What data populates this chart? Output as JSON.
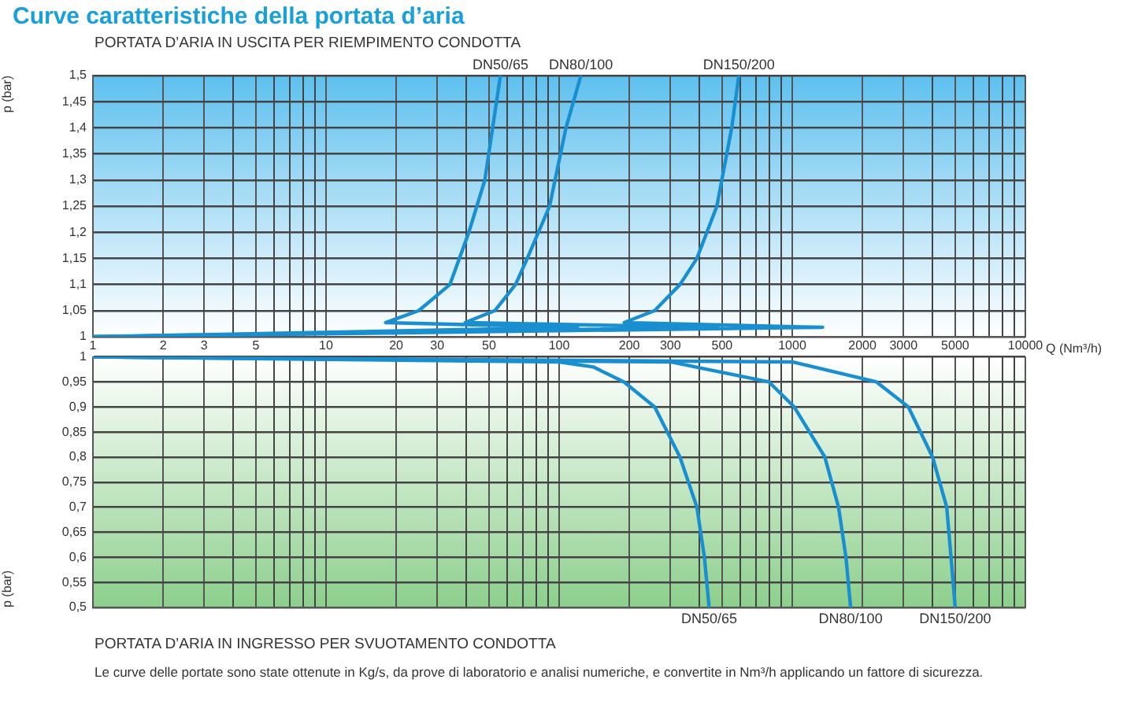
{
  "chart_data": [
    {
      "type": "line",
      "title": "Curve caratteristiche della portata d’aria",
      "subtitle": "PORTATA D’ARIA IN USCITA PER RIEMPIMENTO CONDOTTA",
      "xlabel": "Q (Nm³/h)",
      "ylabel": "p (bar)",
      "log": "x",
      "grid": true,
      "marker": "none",
      "line_style": "solid",
      "legend": false,
      "xlim": [
        1,
        10000
      ],
      "xticks": [
        1,
        2,
        3,
        {
          "value": 4,
          "label": null
        },
        5,
        {
          "value": 6,
          "label": null
        },
        {
          "value": 7,
          "label": null
        },
        {
          "value": 8,
          "label": null
        },
        {
          "value": 9,
          "label": null
        },
        10,
        20,
        30,
        {
          "value": 40,
          "label": null
        },
        50,
        {
          "value": 60,
          "label": null
        },
        {
          "value": 70,
          "label": null
        },
        {
          "value": 80,
          "label": null
        },
        {
          "value": 90,
          "label": null
        },
        100,
        200,
        300,
        {
          "value": 400,
          "label": null
        },
        500,
        {
          "value": 600,
          "label": null
        },
        {
          "value": 700,
          "label": null
        },
        {
          "value": 800,
          "label": null
        },
        {
          "value": 900,
          "label": null
        },
        1000,
        2000,
        3000,
        {
          "value": 4000,
          "label": null
        },
        5000,
        {
          "value": 6000,
          "label": null
        },
        {
          "value": 7000,
          "label": null
        },
        {
          "value": 8000,
          "label": null
        },
        {
          "value": 9000,
          "label": null
        },
        10000
      ],
      "ylim": [
        1,
        1.5
      ],
      "yticks": [
        1,
        {
          "value": 1.05,
          "label": "1,05"
        },
        {
          "value": 1.1,
          "label": "1,1"
        },
        {
          "value": 1.15,
          "label": "1,15"
        },
        {
          "value": 1.2,
          "label": "1,2"
        },
        {
          "value": 1.25,
          "label": "1,25"
        },
        {
          "value": 1.3,
          "label": "1,3"
        },
        {
          "value": 1.35,
          "label": "1,35"
        },
        {
          "value": 1.4,
          "label": "1,4"
        },
        {
          "value": 1.45,
          "label": "1,45"
        },
        {
          "value": 1.5,
          "label": "1,5"
        }
      ],
      "series": [
        {
          "name": "DN50/65",
          "color": "#1a8fd0",
          "x": [
            1,
            120,
            18,
            25,
            34,
            41,
            48,
            56
          ],
          "values": [
            1,
            1.018,
            1.027,
            1.05,
            1.1,
            1.2,
            1.3,
            1.5
          ]
        },
        {
          "name": "DN80/100",
          "color": "#1a8fd0",
          "x": [
            1,
            480,
            39.5,
            53,
            65,
            73,
            91,
            107,
            124
          ],
          "values": [
            1,
            1.018,
            1.027,
            1.05,
            1.1,
            1.15,
            1.25,
            1.4,
            1.5
          ]
        },
        {
          "name": "DN150/200",
          "color": "#1a8fd0",
          "x": [
            1,
            1350,
            190,
            257,
            330,
            390,
            475,
            550,
            590
          ],
          "values": [
            1,
            1.018,
            1.027,
            1.05,
            1.1,
            1.15,
            1.25,
            1.4,
            1.5
          ]
        }
      ]
    },
    {
      "type": "line",
      "title": "PORTATA D’ARIA IN INGRESSO PER SVUOTAMENTO CONDOTTA",
      "ylabel": "p (bar)",
      "log": "x",
      "grid": true,
      "marker": "none",
      "line_style": "solid",
      "legend": false,
      "tick_labels": "y",
      "annotations": [
        "Le curve delle portate sono state ottenute in Kg/s, da prove di laboratorio e analisi numeriche, e convertite in Nm³/h applicando un fattore di sicurezza."
      ],
      "xlim": [
        1,
        10000
      ],
      "xticks": [
        1,
        2,
        3,
        {
          "value": 4,
          "label": null
        },
        5,
        {
          "value": 6,
          "label": null
        },
        {
          "value": 7,
          "label": null
        },
        {
          "value": 8,
          "label": null
        },
        {
          "value": 9,
          "label": null
        },
        10,
        20,
        30,
        {
          "value": 40,
          "label": null
        },
        50,
        {
          "value": 60,
          "label": null
        },
        {
          "value": 70,
          "label": null
        },
        {
          "value": 80,
          "label": null
        },
        {
          "value": 90,
          "label": null
        },
        100,
        200,
        300,
        {
          "value": 400,
          "label": null
        },
        500,
        {
          "value": 600,
          "label": null
        },
        {
          "value": 700,
          "label": null
        },
        {
          "value": 800,
          "label": null
        },
        {
          "value": 900,
          "label": null
        },
        1000,
        2000,
        3000,
        {
          "value": 4000,
          "label": null
        },
        5000,
        {
          "value": 6000,
          "label": null
        },
        {
          "value": 7000,
          "label": null
        },
        {
          "value": 8000,
          "label": null
        },
        {
          "value": 9000,
          "label": null
        },
        10000
      ],
      "ylim": [
        0.5,
        1
      ],
      "yticks": [
        {
          "value": 0.5,
          "label": "0,5"
        },
        {
          "value": 0.55,
          "label": "0,55"
        },
        {
          "value": 0.6,
          "label": "0,6"
        },
        {
          "value": 0.65,
          "label": "0,65"
        },
        {
          "value": 0.7,
          "label": "0,7"
        },
        {
          "value": 0.75,
          "label": "0,75"
        },
        {
          "value": 0.8,
          "label": "0,8"
        },
        {
          "value": 0.85,
          "label": "0,85"
        },
        {
          "value": 0.9,
          "label": "0,9"
        },
        {
          "value": 0.95,
          "label": "0,95"
        },
        1
      ],
      "series": [
        {
          "name": "DN50/65",
          "color": "#1a8fd0",
          "x": [
            1,
            100,
            140,
            190,
            257,
            330,
            390,
            420,
            440
          ],
          "values": [
            1,
            0.99,
            0.98,
            0.95,
            0.9,
            0.8,
            0.7,
            0.6,
            0.5
          ]
        },
        {
          "name": "DN80/100",
          "color": "#1a8fd0",
          "x": [
            1,
            300,
            795,
            1020,
            1380,
            1580,
            1700,
            1780
          ],
          "values": [
            1,
            0.99,
            0.95,
            0.9,
            0.8,
            0.7,
            0.6,
            0.5
          ]
        },
        {
          "name": "DN150/200",
          "color": "#1a8fd0",
          "x": [
            1,
            1000,
            2300,
            3150,
            4000,
            4600,
            4800,
            5000
          ],
          "values": [
            1,
            0.99,
            0.95,
            0.9,
            0.8,
            0.7,
            0.6,
            0.5
          ]
        }
      ]
    }
  ]
}
